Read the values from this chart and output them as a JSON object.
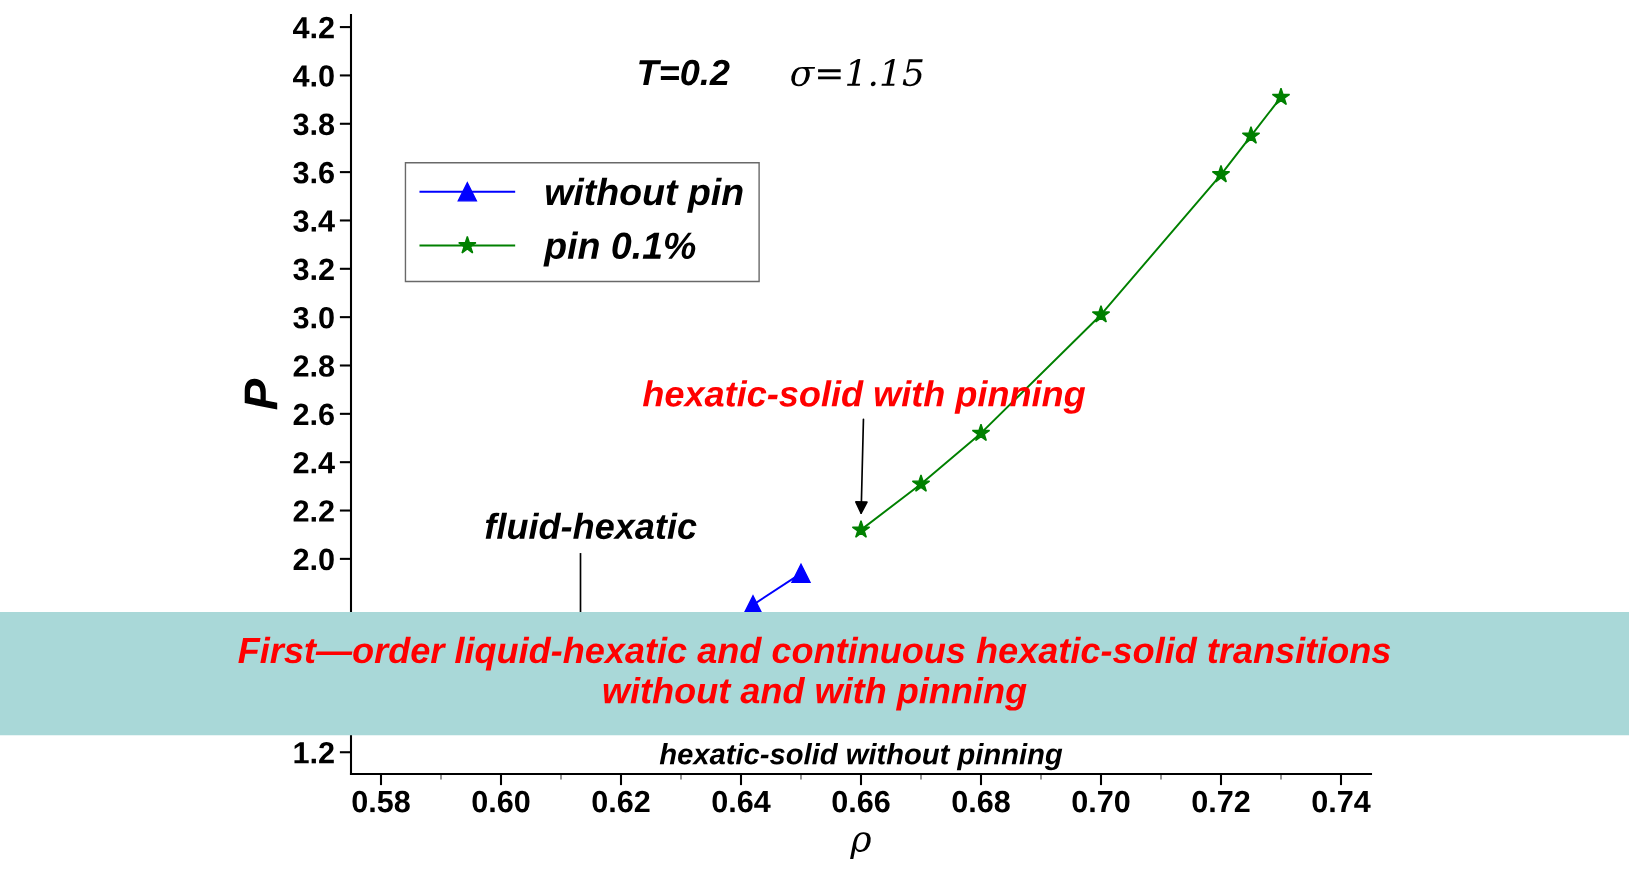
{
  "chart_data": {
    "type": "line",
    "xlabel": "ρ",
    "ylabel": "P",
    "xlim": [
      0.575,
      0.745
    ],
    "xticks": [
      {
        "value": 0.58,
        "label": "0.58"
      },
      {
        "value": 0.6,
        "label": "0.60"
      },
      {
        "value": 0.62,
        "label": "0.62"
      },
      {
        "value": 0.64,
        "label": "0.64"
      },
      {
        "value": 0.66,
        "label": "0.66"
      },
      {
        "value": 0.68,
        "label": "0.68"
      },
      {
        "value": 0.7,
        "label": "0.70"
      },
      {
        "value": 0.72,
        "label": "0.72"
      },
      {
        "value": 0.74,
        "label": "0.74"
      }
    ],
    "ylim": [
      1.11,
      4.25
    ],
    "yticks": [
      1.2,
      {
        "value": 2.0,
        "label": "2.0"
      },
      2.2,
      2.4,
      2.6,
      2.8,
      {
        "value": 3.0,
        "label": "3.0"
      },
      3.2,
      3.4,
      3.6,
      3.8,
      {
        "value": 4.0,
        "label": "4.0"
      },
      4.2
    ],
    "series": [
      {
        "name": "without pin",
        "color": "#0000ff",
        "marker": "triangle",
        "x": [
          0.642,
          0.65
        ],
        "values": [
          1.81,
          1.94
        ]
      },
      {
        "name": "pin 0.1%",
        "color": "#008000",
        "marker": "star",
        "x": [
          0.66,
          0.67,
          0.68,
          0.7,
          0.72,
          0.725,
          0.73
        ],
        "values": [
          2.12,
          2.31,
          2.52,
          3.01,
          3.59,
          3.75,
          3.91
        ]
      }
    ],
    "legend": "top left",
    "grid": false,
    "annotations": [
      "T=0.2",
      "σ=1.15",
      {
        "text": "hexatic-solid with pinning",
        "x": 0.66,
        "y": 2.17
      },
      "fluid-hexatic",
      "hexatic-solid without pinning",
      "First—order liquid-hexatic and continuous hexatic-solid transitions\nwithout and with pinning"
    ]
  }
}
